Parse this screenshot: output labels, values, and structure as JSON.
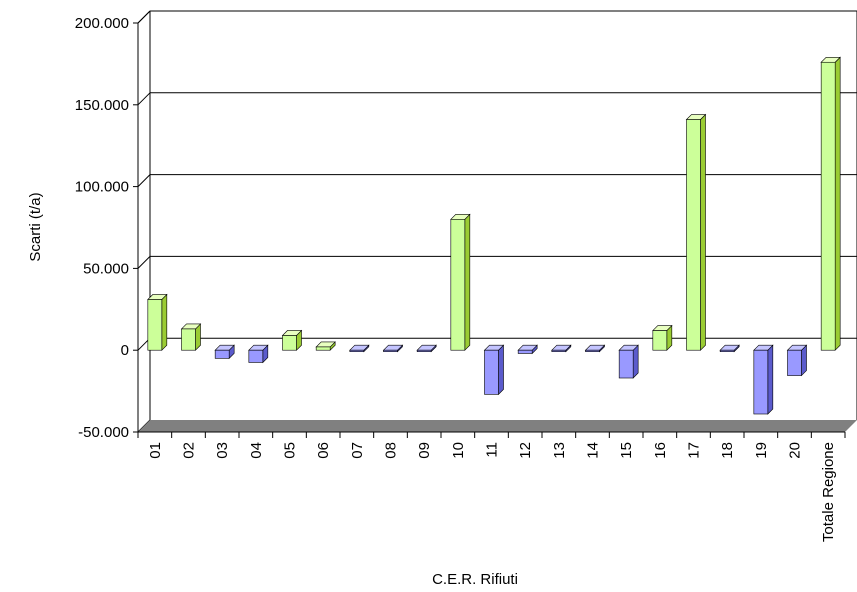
{
  "chart_data": {
    "type": "bar",
    "xlabel": "C.E.R. Rifiuti",
    "ylabel": "Scarti (t/a)",
    "ylim": [
      -50000,
      200000
    ],
    "y_ticks": [
      -50000,
      0,
      50000,
      100000,
      150000,
      200000
    ],
    "y_tick_labels": [
      "-50.000",
      "0",
      "50.000",
      "100.000",
      "150.000",
      "200.000"
    ],
    "grid": true,
    "legend": "none",
    "categories": [
      "01",
      "02",
      "03",
      "04",
      "05",
      "06",
      "07",
      "08",
      "09",
      "10",
      "11",
      "12",
      "13",
      "14",
      "15",
      "16",
      "17",
      "18",
      "19",
      "20",
      "Totale Regione"
    ],
    "values": [
      31000,
      13000,
      -5000,
      -7500,
      9000,
      2000,
      -500,
      -500,
      -500,
      80000,
      -27000,
      -2000,
      -500,
      -300,
      -17000,
      12000,
      141000,
      -500,
      -39000,
      -15500,
      176000
    ],
    "colors": {
      "positive_front": "#ccff99",
      "positive_side": "#9acc33",
      "positive_top": "#e8ffc0",
      "negative_front": "#9999ff",
      "negative_side": "#5b5bcc",
      "negative_top": "#c4c4ff",
      "floor": "#808080",
      "gridline": "#000000"
    }
  }
}
